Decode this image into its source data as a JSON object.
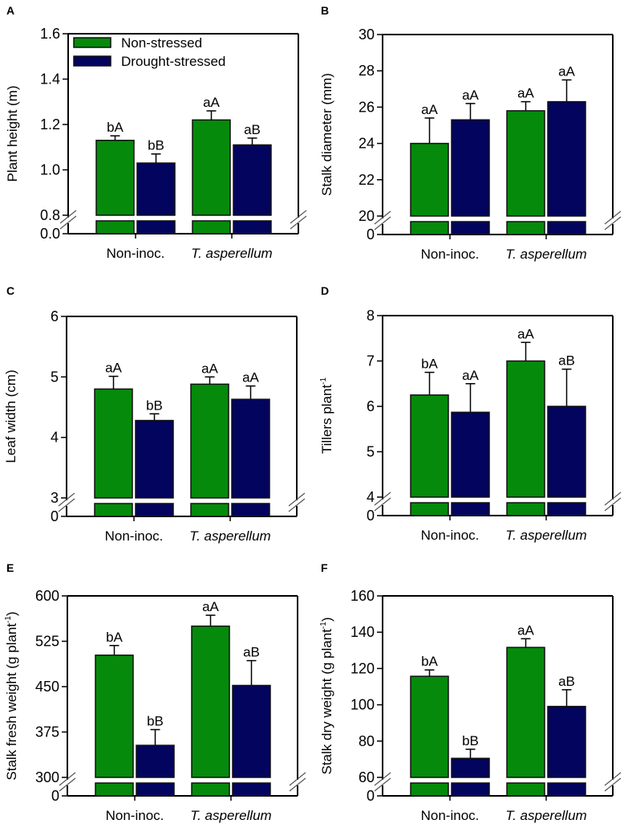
{
  "colors": {
    "non_stressed": "#058a0b",
    "drought_stressed": "#03045e"
  },
  "legend": [
    {
      "label": "Non-stressed",
      "color": "#058a0b"
    },
    {
      "label": "Drought-stressed",
      "color": "#03045e"
    }
  ],
  "chart_data": [
    {
      "panel": "A",
      "type": "bar",
      "ylabel": "Plant height (m)",
      "ylabel_sup": "",
      "ylabel_tail": "",
      "categories": [
        "Non-inoc.",
        "T. asperellum"
      ],
      "ylim": [
        0.8,
        1.6
      ],
      "yticks": [
        "0.8",
        "1.0",
        "1.2",
        "1.4",
        "1.6"
      ],
      "break_label": "0.0",
      "series": [
        {
          "name": "Non-stressed",
          "values": [
            1.13,
            1.22
          ],
          "errors": [
            0.02,
            0.04
          ],
          "letters": [
            "bA",
            "aA"
          ]
        },
        {
          "name": "Drought-stressed",
          "values": [
            1.03,
            1.11
          ],
          "errors": [
            0.04,
            0.03
          ],
          "letters": [
            "bB",
            "aB"
          ]
        }
      ]
    },
    {
      "panel": "B",
      "type": "bar",
      "ylabel": "Stalk diameter (mm)",
      "ylabel_sup": "",
      "ylabel_tail": "",
      "categories": [
        "Non-inoc.",
        "T. asperellum"
      ],
      "ylim": [
        20,
        30
      ],
      "yticks": [
        "20",
        "22",
        "24",
        "26",
        "28",
        "30"
      ],
      "break_label": "0",
      "series": [
        {
          "name": "Non-stressed",
          "values": [
            24.0,
            25.8
          ],
          "errors": [
            1.4,
            0.5
          ],
          "letters": [
            "aA",
            "aA"
          ]
        },
        {
          "name": "Drought-stressed",
          "values": [
            25.3,
            26.3
          ],
          "errors": [
            0.9,
            1.2
          ],
          "letters": [
            "aA",
            "aA"
          ]
        }
      ]
    },
    {
      "panel": "C",
      "type": "bar",
      "ylabel": "Leaf width (cm)",
      "ylabel_sup": "",
      "ylabel_tail": "",
      "categories": [
        "Non-inoc.",
        "T. asperellum"
      ],
      "ylim": [
        3,
        6
      ],
      "yticks": [
        "3",
        "4",
        "5",
        "6"
      ],
      "break_label": "0",
      "series": [
        {
          "name": "Non-stressed",
          "values": [
            4.8,
            4.88
          ],
          "errors": [
            0.21,
            0.12
          ],
          "letters": [
            "aA",
            "aA"
          ]
        },
        {
          "name": "Drought-stressed",
          "values": [
            4.28,
            4.63
          ],
          "errors": [
            0.11,
            0.22
          ],
          "letters": [
            "bB",
            "aA"
          ]
        }
      ]
    },
    {
      "panel": "D",
      "type": "bar",
      "ylabel": "Tillers plant",
      "ylabel_sup": "-1",
      "ylabel_tail": "",
      "categories": [
        "Non-inoc.",
        "T. asperellum"
      ],
      "ylim": [
        4,
        8
      ],
      "yticks": [
        "4",
        "5",
        "6",
        "7",
        "8"
      ],
      "break_label": "0",
      "series": [
        {
          "name": "Non-stressed",
          "values": [
            6.25,
            7.0
          ],
          "errors": [
            0.5,
            0.41
          ],
          "letters": [
            "bA",
            "aA"
          ]
        },
        {
          "name": "Drought-stressed",
          "values": [
            5.87,
            6.0
          ],
          "errors": [
            0.63,
            0.82
          ],
          "letters": [
            "aA",
            "aB"
          ]
        }
      ]
    },
    {
      "panel": "E",
      "type": "bar",
      "ylabel": "Stalk fresh weight (g plant",
      "ylabel_sup": "-1",
      "ylabel_tail": ")",
      "categories": [
        "Non-inoc.",
        "T. asperellum"
      ],
      "ylim": [
        300,
        600
      ],
      "yticks": [
        "300",
        "375",
        "450",
        "525",
        "600"
      ],
      "break_label": "0",
      "series": [
        {
          "name": "Non-stressed",
          "values": [
            502,
            550
          ],
          "errors": [
            16,
            18
          ],
          "letters": [
            "bA",
            "aA"
          ]
        },
        {
          "name": "Drought-stressed",
          "values": [
            353,
            452
          ],
          "errors": [
            26,
            41
          ],
          "letters": [
            "bB",
            "aB"
          ]
        }
      ]
    },
    {
      "panel": "F",
      "type": "bar",
      "ylabel": "Stalk dry weight (g plant",
      "ylabel_sup": "-1",
      "ylabel_tail": ")",
      "categories": [
        "Non-inoc.",
        "T. asperellum"
      ],
      "ylim": [
        60,
        160
      ],
      "yticks": [
        "60",
        "80",
        "100",
        "120",
        "140",
        "160"
      ],
      "break_label": "0",
      "series": [
        {
          "name": "Non-stressed",
          "values": [
            115.7,
            131.6
          ],
          "errors": [
            3.5,
            4.8
          ],
          "letters": [
            "bA",
            "aA"
          ]
        },
        {
          "name": "Drought-stressed",
          "values": [
            70.5,
            99.1
          ],
          "errors": [
            5.0,
            9.2
          ],
          "letters": [
            "bB",
            "aB"
          ]
        }
      ]
    }
  ]
}
